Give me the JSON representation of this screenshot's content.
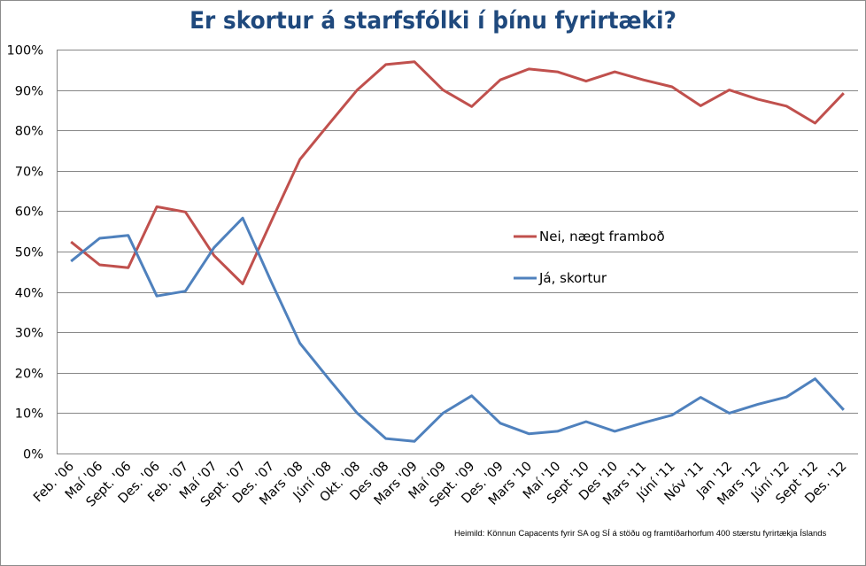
{
  "chart_data": {
    "type": "line",
    "title": "Er skortur á starfsfólki í þínu fyrirtæki?",
    "xlabel": "",
    "ylabel": "",
    "ylim": [
      0,
      100
    ],
    "yticks": [
      "0%",
      "10%",
      "20%",
      "30%",
      "40%",
      "50%",
      "60%",
      "70%",
      "80%",
      "90%",
      "100%"
    ],
    "grid": true,
    "legend_position": "inside-right-middle",
    "categories": [
      "Feb. '06",
      "Maí '06",
      "Sept. '06",
      "Des. '06",
      "Feb. '07",
      "Maí '07",
      "Sept. '07",
      "Des. '07",
      "Mars '08",
      "Júní '08",
      "Okt. '08",
      "Des '08",
      "Mars '09",
      "Maí '09",
      "Sept. '09",
      "Des. '09",
      "Mars '10",
      "Maí '10",
      "Sept '10",
      "Des '10",
      "Mars '11",
      "Júní '11",
      "Nóv '11",
      "Jan '12",
      "Mars '12",
      "Júní '12",
      "Sept '12",
      "Des. '12"
    ],
    "series": [
      {
        "name": "Nei, nægt framboð",
        "color": "#c0504d",
        "values": [
          52.4,
          46.7,
          46.0,
          61.1,
          59.8,
          49.0,
          42.0,
          57.5,
          72.8,
          81.5,
          90.0,
          96.3,
          97.0,
          90.0,
          85.9,
          92.5,
          95.2,
          94.5,
          92.2,
          94.5,
          92.5,
          90.8,
          86.1,
          90.0,
          87.7,
          86.0,
          81.8,
          89.2
        ]
      },
      {
        "name": "Já, skortur",
        "color": "#4f81bd",
        "values": [
          47.6,
          53.3,
          54.0,
          39.0,
          40.2,
          51.0,
          58.3,
          42.5,
          27.3,
          18.5,
          10.0,
          3.7,
          3.0,
          10.0,
          14.3,
          7.5,
          4.9,
          5.5,
          7.9,
          5.5,
          7.6,
          9.5,
          13.9,
          10.0,
          12.2,
          14.0,
          18.5,
          10.8
        ]
      }
    ],
    "annotations": [
      "Heimild: Könnun Capacents fyrir SA og SÍ á stöðu og framtíðarhorfum 400 stærstu fyrirtækja Íslands"
    ]
  },
  "source_note": "Heimild: Könnun Capacents fyrir SA og SÍ á stöðu og framtíðarhorfum 400 stærstu fyrirtækja Íslands",
  "colors": {
    "title": "#1f497d",
    "grid": "#868686",
    "series_red": "#c0504d",
    "series_blue": "#4f81bd"
  }
}
